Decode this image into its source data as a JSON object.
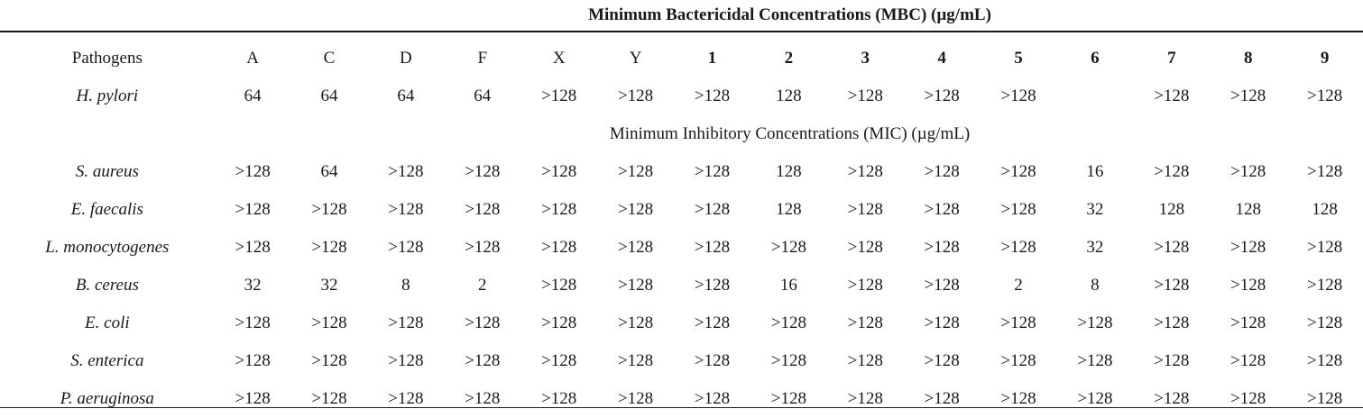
{
  "mbc_title": "Minimum Bactericidal Concentrations (MBC) (µg/mL)",
  "mic_title": "Minimum Inhibitory Concentrations (MIC) (µg/mL)",
  "header": {
    "first": "Pathogens",
    "columns": [
      {
        "label": "A",
        "bold": false
      },
      {
        "label": "C",
        "bold": false
      },
      {
        "label": "D",
        "bold": false
      },
      {
        "label": "F",
        "bold": false
      },
      {
        "label": "X",
        "bold": false
      },
      {
        "label": "Y",
        "bold": false
      },
      {
        "label": "1",
        "bold": true
      },
      {
        "label": "2",
        "bold": true
      },
      {
        "label": "3",
        "bold": true
      },
      {
        "label": "4",
        "bold": true
      },
      {
        "label": "5",
        "bold": true
      },
      {
        "label": "6",
        "bold": true
      },
      {
        "label": "7",
        "bold": true
      },
      {
        "label": "8",
        "bold": true
      },
      {
        "label": "9",
        "bold": true
      }
    ]
  },
  "mbc_rows": [
    {
      "pathogen": "H. pylori",
      "values": [
        "64",
        "64",
        "64",
        "64",
        ">128",
        ">128",
        ">128",
        "128",
        ">128",
        ">128",
        ">128",
        "",
        ">128",
        ">128",
        ">128"
      ]
    }
  ],
  "mic_rows": [
    {
      "pathogen": "S. aureus",
      "values": [
        ">128",
        "64",
        ">128",
        ">128",
        ">128",
        ">128",
        ">128",
        "128",
        ">128",
        ">128",
        ">128",
        "16",
        ">128",
        ">128",
        ">128"
      ]
    },
    {
      "pathogen": "E. faecalis",
      "values": [
        ">128",
        ">128",
        ">128",
        ">128",
        ">128",
        ">128",
        ">128",
        "128",
        ">128",
        ">128",
        ">128",
        "32",
        "128",
        "128",
        "128"
      ]
    },
    {
      "pathogen": "L. monocytogenes",
      "values": [
        ">128",
        ">128",
        ">128",
        ">128",
        ">128",
        ">128",
        ">128",
        ">128",
        ">128",
        ">128",
        ">128",
        "32",
        ">128",
        ">128",
        ">128"
      ]
    },
    {
      "pathogen": "B. cereus",
      "values": [
        "32",
        "32",
        "8",
        "2",
        ">128",
        ">128",
        ">128",
        "16",
        ">128",
        ">128",
        "2",
        "8",
        ">128",
        ">128",
        ">128"
      ]
    },
    {
      "pathogen": "E. coli",
      "values": [
        ">128",
        ">128",
        ">128",
        ">128",
        ">128",
        ">128",
        ">128",
        ">128",
        ">128",
        ">128",
        ">128",
        ">128",
        ">128",
        ">128",
        ">128"
      ]
    },
    {
      "pathogen": "S. enterica",
      "values": [
        ">128",
        ">128",
        ">128",
        ">128",
        ">128",
        ">128",
        ">128",
        ">128",
        ">128",
        ">128",
        ">128",
        ">128",
        ">128",
        ">128",
        ">128"
      ]
    },
    {
      "pathogen": "P. aeruginosa",
      "values": [
        ">128",
        ">128",
        ">128",
        ">128",
        ">128",
        ">128",
        ">128",
        ">128",
        ">128",
        ">128",
        ">128",
        ">128",
        ">128",
        ">128",
        ">128"
      ]
    }
  ]
}
